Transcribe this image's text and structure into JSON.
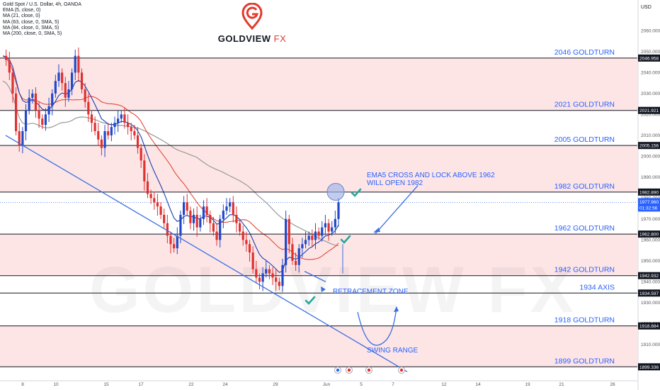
{
  "legend": {
    "title": "Gold Spot / U.S. Dollar, 4h, OANDA",
    "lines": [
      "EMA (5, close, 0)",
      "MA (21, close, 0)",
      "MA (63, close, 0, SMA, 5)",
      "MA (84, close, 0, SMA, 5)",
      "MA (200, close, 0, SMA, 5)"
    ]
  },
  "brand": {
    "name": "GOLDVIEW",
    "suffix": "FX",
    "watermark": "GOLDVIEW FX"
  },
  "colors": {
    "band": "#fde5e6",
    "level_line": "#131722",
    "label_blue": "#2962ff",
    "candle_up": "#2148c9",
    "candle_down": "#e03030",
    "ema5": "#1a3fb0",
    "ma21": "#e04a3a",
    "ma200": "#999999",
    "trend": "#3b6fe0",
    "check": "#26a69a"
  },
  "chart_data": {
    "type": "candlestick",
    "symbol": "Gold Spot / U.S. Dollar",
    "timeframe": "4h",
    "y_axis": {
      "unit": "USD",
      "ylim": [
        1893,
        2072
      ],
      "ticks": [
        1910,
        1920,
        1930,
        1940,
        1950,
        1960,
        1970,
        1980,
        1990,
        2000,
        2010,
        2020,
        2030,
        2040,
        2050,
        2060
      ]
    },
    "x_axis": {
      "ticks": [
        "8",
        "10",
        "15",
        "17",
        "22",
        "24",
        "29",
        "Jun",
        "5",
        "7",
        "12",
        "14",
        "19",
        "21",
        "26"
      ]
    },
    "price_tags": [
      {
        "label": "2046.958",
        "value": 2046.958
      },
      {
        "label": "2021.921",
        "value": 2021.921
      },
      {
        "label": "2005.156",
        "value": 2005.156
      },
      {
        "label": "1982.890",
        "value": 1982.89
      },
      {
        "label": "1962.800",
        "value": 1962.8
      },
      {
        "label": "1942.932",
        "value": 1942.932
      },
      {
        "label": "1934.597",
        "value": 1934.597
      },
      {
        "label": "1918.884",
        "value": 1918.884
      },
      {
        "label": "1899.336",
        "value": 1899.336
      }
    ],
    "current_price": {
      "label": "1977.960",
      "countdown": "01:32:56",
      "value": 1977.96
    },
    "levels": [
      {
        "label": "2046 GOLDTURN",
        "value": 2046.958
      },
      {
        "label": "2021 GOLDTURN",
        "value": 2021.921
      },
      {
        "label": "2005 GOLDTURN",
        "value": 2005.156
      },
      {
        "label": "1982 GOLDTURN",
        "value": 1982.89
      },
      {
        "label": "1962 GOLDTURN",
        "value": 1962.8
      },
      {
        "label": "1942 GOLDTURN",
        "value": 1942.932
      },
      {
        "label": "1934 AXIS",
        "value": 1934.597
      },
      {
        "label": "1918 GOLDTURN",
        "value": 1918.884
      },
      {
        "label": "1899 GOLDTURN",
        "value": 1899.336
      }
    ],
    "bands": [
      [
        2021.921,
        2046.958
      ],
      [
        1982.89,
        2005.156
      ],
      [
        1942.932,
        1962.8
      ],
      [
        1899.336,
        1918.884
      ]
    ],
    "annotations": [
      {
        "text": "EMA5 CROSS AND LOCK ABOVE 1962",
        "line2": "WILL OPEN 1982"
      },
      {
        "text": "RETRACEMENT ZONE"
      },
      {
        "text": "SWING RANGE"
      }
    ],
    "closes": [
      2048,
      2046,
      2040,
      2030,
      2012,
      2005,
      2012,
      2022,
      2028,
      2030,
      2022,
      2018,
      2015,
      2020,
      2024,
      2030,
      2036,
      2040,
      2035,
      2028,
      2032,
      2040,
      2048,
      2040,
      2032,
      2026,
      2020,
      2016,
      2012,
      2008,
      2004,
      2012,
      2010,
      2014,
      2016,
      2018,
      2020,
      2016,
      2014,
      2012,
      2010,
      2004,
      1998,
      1988,
      1982,
      1980,
      1978,
      1976,
      1972,
      1968,
      1962,
      1958,
      1956,
      1962,
      1972,
      1978,
      1974,
      1968,
      1972,
      1966,
      1970,
      1976,
      1972,
      1968,
      1964,
      1960,
      1970,
      1974,
      1976,
      1978,
      1972,
      1968,
      1964,
      1960,
      1958,
      1954,
      1946,
      1942,
      1940,
      1944,
      1946,
      1944,
      1942,
      1940,
      1938,
      1948,
      1970,
      1958,
      1950,
      1948,
      1956,
      1958,
      1960,
      1962,
      1960,
      1964,
      1962,
      1966,
      1968,
      1964,
      1966,
      1970,
      1978
    ]
  }
}
